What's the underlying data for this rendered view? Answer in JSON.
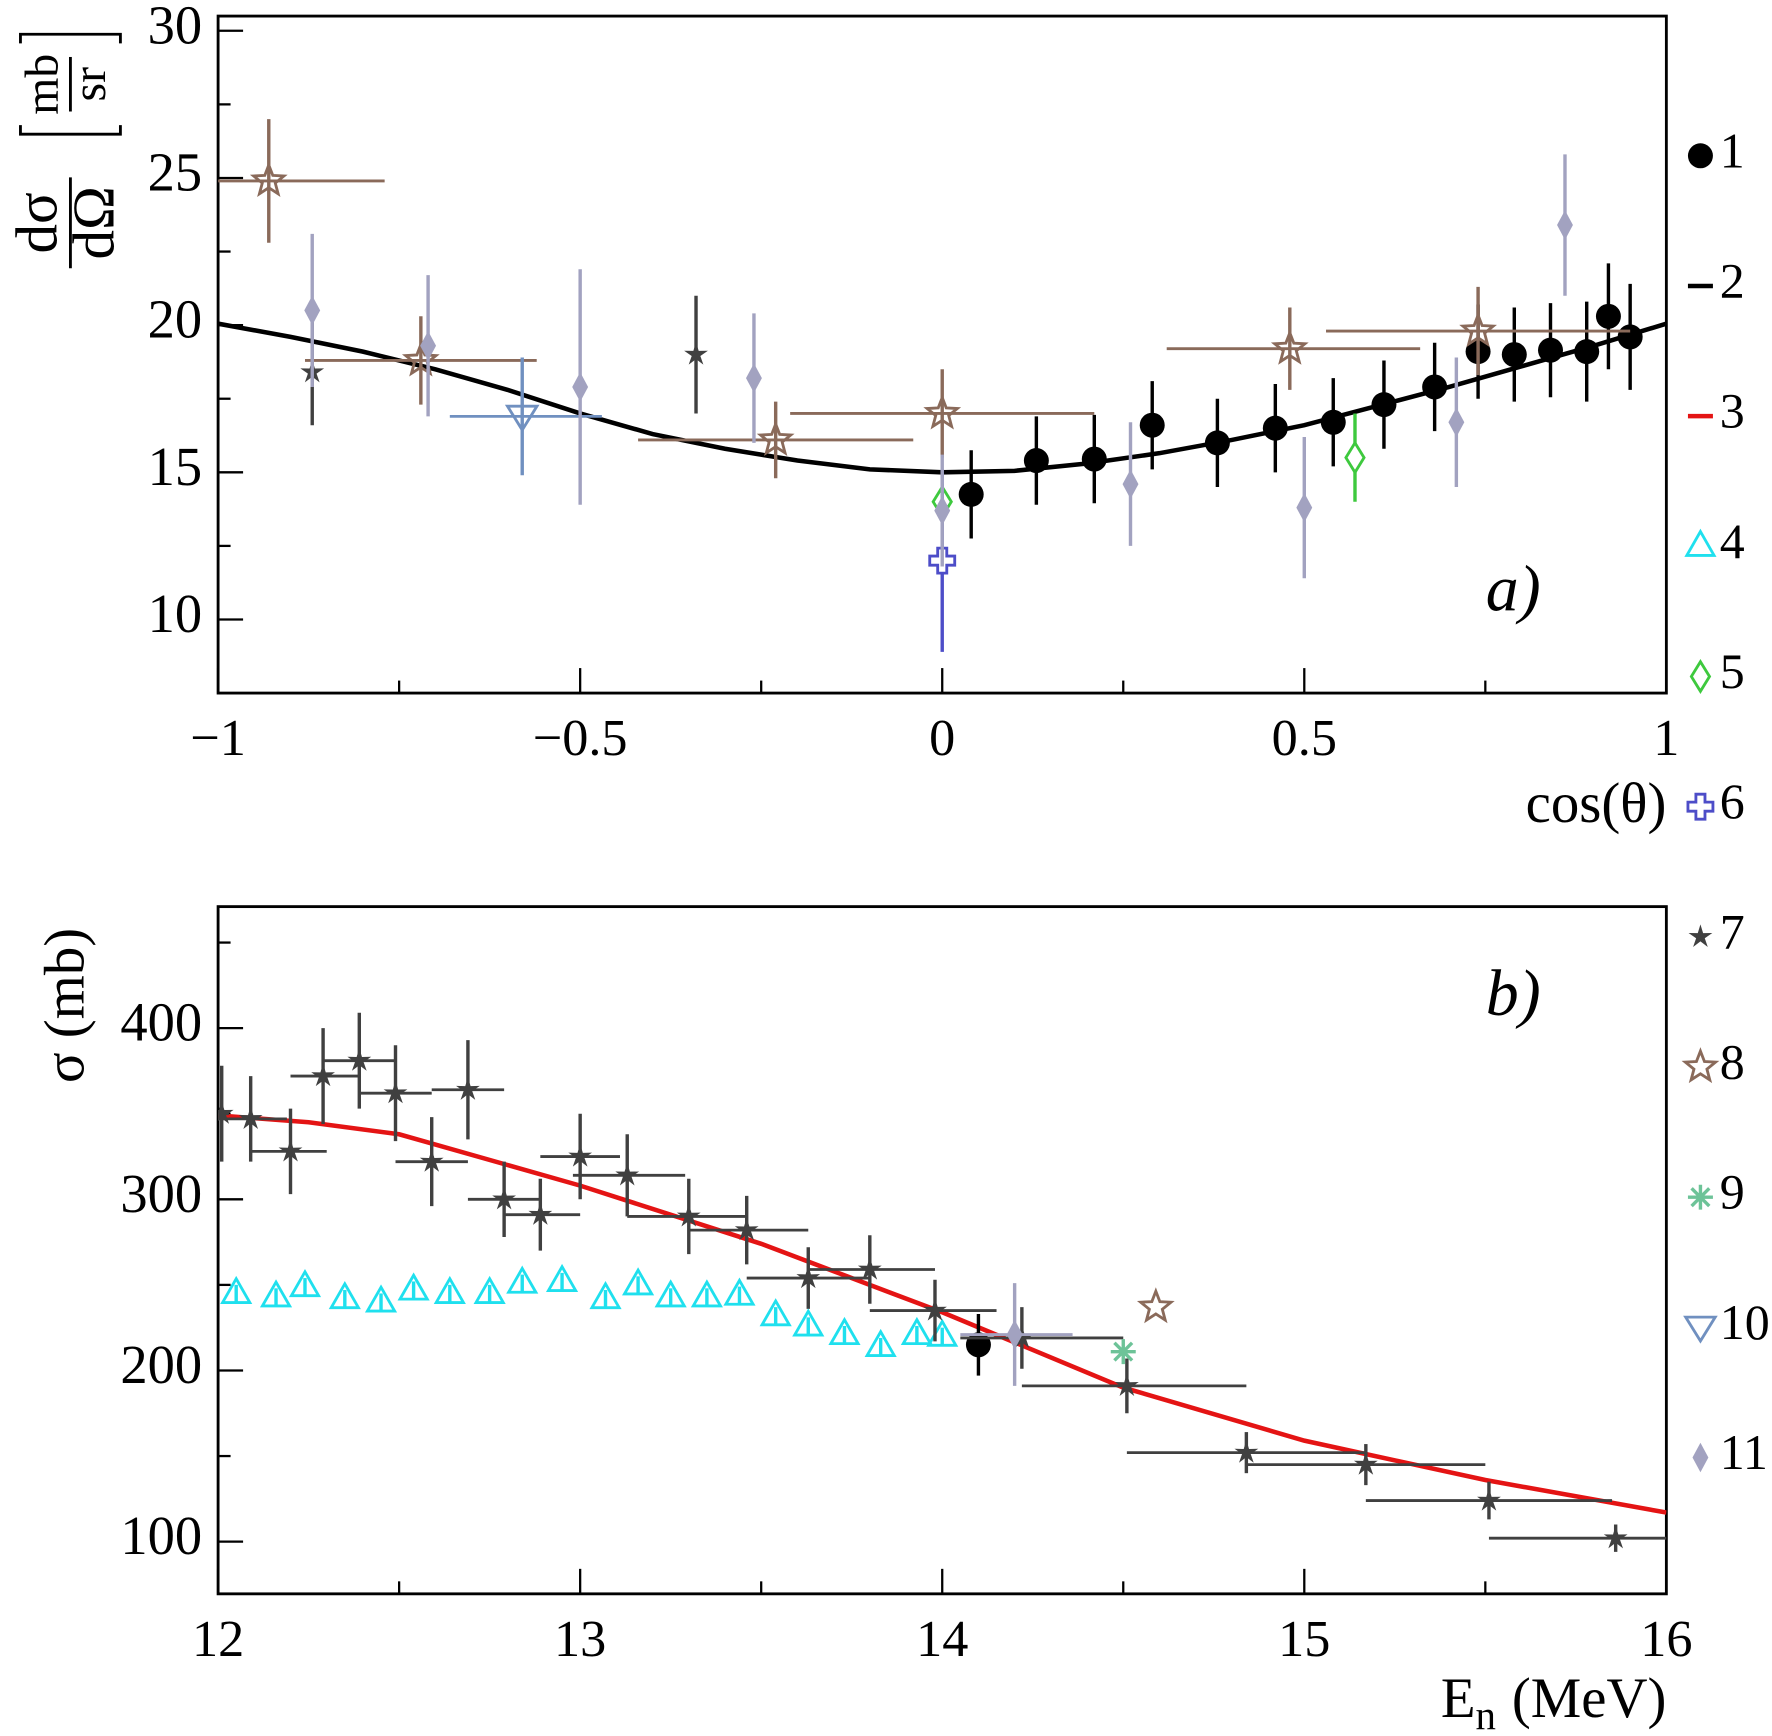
{
  "chart_data": [
    {
      "type": "scatter",
      "annotation": "a)",
      "xlabel": "cos(θ)",
      "ylabel": {
        "numerator": "dσ",
        "denominator": "dΩ",
        "unit_numerator": "mb",
        "unit_denominator": "sr"
      },
      "xlim": [
        -1,
        1
      ],
      "ylim": [
        7.5,
        30.5
      ],
      "xticks": [
        {
          "value": -1,
          "label": "−1"
        },
        {
          "value": -0.5,
          "label": "−0.5"
        },
        0,
        0.5,
        1
      ],
      "xminorticks": [
        -0.75,
        -0.25,
        0.25,
        0.75
      ],
      "yticks": [
        10,
        15,
        20,
        25,
        30
      ],
      "yminorticks": [
        12.5,
        17.5,
        22.5,
        27.5
      ],
      "series": [
        {
          "name": "1",
          "marker": "circle",
          "color": "#000000",
          "x": [
            0.04,
            0.13,
            0.21,
            0.29,
            0.38,
            0.46,
            0.54,
            0.61,
            0.68,
            0.74,
            0.79,
            0.84,
            0.89,
            0.92,
            0.95
          ],
          "values": [
            14.25,
            15.4,
            15.45,
            16.6,
            16.0,
            16.5,
            16.7,
            17.3,
            17.9,
            19.1,
            19.0,
            19.15,
            19.1,
            20.3,
            19.6
          ],
          "errors": [
            1.5,
            1.5,
            1.5,
            1.5,
            1.5,
            1.5,
            1.5,
            1.5,
            1.5,
            1.6,
            1.6,
            1.6,
            1.7,
            1.8,
            1.8
          ]
        },
        {
          "name": "2",
          "marker": "line",
          "color": "#000000",
          "x": [
            -1,
            -0.9,
            -0.8,
            -0.7,
            -0.6,
            -0.5,
            -0.4,
            -0.3,
            -0.2,
            -0.1,
            0,
            0.1,
            0.2,
            0.3,
            0.4,
            0.5,
            0.6,
            0.7,
            0.8,
            0.9,
            1
          ],
          "values": [
            20.05,
            19.6,
            19.1,
            18.5,
            17.8,
            17.0,
            16.3,
            15.8,
            15.4,
            15.1,
            15.0,
            15.05,
            15.3,
            15.65,
            16.1,
            16.6,
            17.25,
            17.9,
            18.6,
            19.3,
            20.05
          ]
        },
        {
          "name": "5",
          "marker": "diamond",
          "color": "#3ec93e",
          "x": [
            0,
            0.57
          ],
          "values": [
            14.0,
            15.5
          ],
          "errors": [
            0.6,
            1.5
          ]
        },
        {
          "name": "6",
          "marker": "cross",
          "color": "#4d4dc8",
          "x": [
            0
          ],
          "values": [
            12.0
          ],
          "errors": [
            3.1
          ]
        },
        {
          "name": "7",
          "marker": "star",
          "color": "#404040",
          "x": [
            -0.87,
            -0.34
          ],
          "values": [
            18.4,
            19.0
          ],
          "errors": [
            1.8,
            2.0
          ]
        },
        {
          "name": "8",
          "marker": "openstar",
          "color": "#8a6a5a",
          "x": [
            -0.93,
            -0.72,
            -0.23,
            0.0,
            0.48,
            0.74
          ],
          "values": [
            24.9,
            18.8,
            16.1,
            17.0,
            19.2,
            19.8
          ],
          "errors": [
            2.1,
            1.5,
            1.3,
            1.5,
            1.4,
            1.5
          ],
          "xlow": [
            -1,
            -0.88,
            -0.42,
            -0.21,
            0.31,
            0.53
          ],
          "xhigh": [
            -0.77,
            -0.56,
            -0.04,
            0.21,
            0.66,
            0.95
          ]
        },
        {
          "name": "10",
          "marker": "tridown",
          "color": "#7090c0",
          "x": [
            -0.58
          ],
          "values": [
            16.9
          ],
          "errors": [
            2.0
          ],
          "xlow": [
            -0.68
          ],
          "xhigh": [
            -0.47
          ]
        },
        {
          "name": "11",
          "marker": "diamondf",
          "color": "#a2a2c0",
          "x": [
            -0.87,
            -0.71,
            -0.5,
            -0.26,
            0.0,
            0.26,
            0.5,
            0.71,
            0.86
          ],
          "values": [
            20.5,
            19.3,
            17.9,
            18.2,
            13.7,
            14.6,
            13.8,
            16.7,
            23.4
          ],
          "errors": [
            2.6,
            2.4,
            4.0,
            2.2,
            1.9,
            2.1,
            2.4,
            2.2,
            2.4
          ]
        }
      ]
    },
    {
      "type": "scatter",
      "annotation": "b)",
      "xlabel": {
        "text": "E",
        "subscript": "n",
        "unit": "(MeV)"
      },
      "ylabel": "σ (mb)",
      "xlim": [
        12,
        16
      ],
      "ylim": [
        69.5,
        471
      ],
      "xticks": [
        12,
        13,
        14,
        15,
        16
      ],
      "xminorticks": [
        12.5,
        13.5,
        14.5,
        15.5
      ],
      "yticks": [
        100,
        200,
        300,
        400
      ],
      "yminorticks": [
        150,
        250,
        350,
        450
      ],
      "series": [
        {
          "name": "1",
          "marker": "circle",
          "color": "#000000",
          "x": [
            14.1
          ],
          "values": [
            215
          ],
          "errors": [
            18
          ]
        },
        {
          "name": "3",
          "marker": "line",
          "color": "#e41414",
          "x": [
            12,
            12.25,
            12.5,
            13,
            13.5,
            14,
            14.5,
            15,
            15.5,
            16
          ],
          "values": [
            349,
            345,
            338,
            308,
            274,
            234,
            190,
            159,
            136,
            117
          ]
        },
        {
          "name": "4",
          "marker": "triup",
          "color": "#1fe0ee",
          "x": [
            12.05,
            12.16,
            12.24,
            12.35,
            12.45,
            12.54,
            12.64,
            12.75,
            12.84,
            12.95,
            13.07,
            13.16,
            13.25,
            13.35,
            13.44,
            13.54,
            13.63,
            13.73,
            13.83,
            13.93,
            14.0
          ],
          "values": [
            245,
            243,
            249,
            242,
            240,
            247,
            245,
            245,
            251,
            252,
            242,
            250,
            243,
            243,
            244,
            232,
            226,
            221,
            214,
            221,
            220
          ],
          "errors": [
            5,
            5,
            5,
            5,
            5,
            5,
            5,
            5,
            5,
            5,
            5,
            5,
            5,
            5,
            5,
            5,
            5,
            5,
            5,
            5,
            5
          ]
        },
        {
          "name": "7",
          "marker": "star",
          "color": "#404040",
          "x": [
            12.01,
            12.09,
            12.2,
            12.29,
            12.39,
            12.49,
            12.59,
            12.69,
            12.79,
            12.89,
            13.0,
            13.13,
            13.3,
            13.46,
            13.63,
            13.8,
            13.98,
            14.22,
            14.51,
            14.84,
            15.17,
            15.51,
            15.86
          ],
          "values": [
            350,
            347,
            328,
            372,
            381,
            362,
            322,
            364,
            300,
            291,
            325,
            314,
            290,
            282,
            254,
            259,
            235,
            219,
            191,
            152,
            145,
            124,
            102
          ],
          "errors": [
            28,
            25,
            25,
            28,
            28,
            28,
            26,
            29,
            22,
            21,
            25,
            24,
            22,
            20,
            18,
            20,
            18,
            18,
            16,
            12,
            12,
            11,
            8
          ],
          "xlow": [
            12.0,
            12.0,
            12.09,
            12.2,
            12.29,
            12.39,
            12.49,
            12.59,
            12.69,
            12.79,
            12.89,
            12.98,
            13.13,
            13.3,
            13.46,
            13.63,
            13.8,
            14.05,
            14.22,
            14.51,
            14.84,
            15.17,
            15.51
          ],
          "xhigh": [
            12.03,
            12.19,
            12.3,
            12.39,
            12.49,
            12.59,
            12.69,
            12.79,
            12.89,
            13.0,
            13.11,
            13.29,
            13.46,
            13.63,
            13.8,
            13.98,
            14.15,
            14.5,
            14.84,
            15.17,
            15.5,
            15.85,
            16.0
          ]
        },
        {
          "name": "8",
          "marker": "openstar",
          "color": "#8a6a5a",
          "x": [
            14.59
          ],
          "values": [
            237
          ]
        },
        {
          "name": "9",
          "marker": "asterisk",
          "color": "#6dc398",
          "x": [
            14.5
          ],
          "values": [
            211
          ]
        },
        {
          "name": "11",
          "marker": "diamondf",
          "color": "#a2a2c0",
          "x": [
            14.2
          ],
          "values": [
            221
          ],
          "errors": [
            30
          ],
          "xlow": [
            14.05
          ],
          "xhigh": [
            14.36
          ]
        }
      ]
    }
  ]
}
